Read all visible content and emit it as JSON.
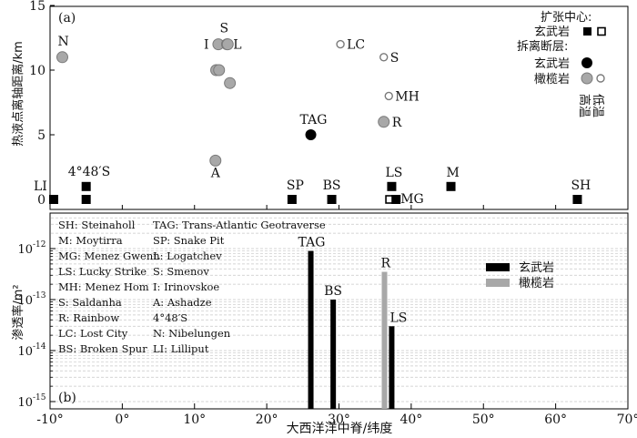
{
  "chart_data": [
    {
      "panel": "(a)",
      "type": "scatter",
      "ylabel": "热液点离轴距离/km",
      "xlim": [
        -10,
        70
      ],
      "ylim": [
        0,
        15
      ],
      "yticks": [
        "0",
        "5",
        "10",
        "15"
      ],
      "legend": {
        "header1": "扩张中心:",
        "basalt1": "玄武岩",
        "header2": "拆离断层:",
        "basalt2": "玄武岩",
        "peridotite": "橄榄岩",
        "high_temp": "高温",
        "low_temp": "低温"
      },
      "points": [
        {
          "label": "LI",
          "x": -9.5,
          "y": 0,
          "marker": "square",
          "temp": "high"
        },
        {
          "label": "4°48′S",
          "x": -5,
          "y": 1,
          "marker": "square",
          "temp": "high"
        },
        {
          "label": "",
          "x": -5,
          "y": 0,
          "marker": "square",
          "temp": "high"
        },
        {
          "label": "SP",
          "x": 23.5,
          "y": 0,
          "marker": "square",
          "temp": "high"
        },
        {
          "label": "BS",
          "x": 29,
          "y": 0,
          "marker": "square",
          "temp": "high"
        },
        {
          "label": "LS",
          "x": 37.3,
          "y": 1,
          "marker": "square",
          "temp": "high"
        },
        {
          "label": "",
          "x": 37,
          "y": 0,
          "marker": "square",
          "temp": "low"
        },
        {
          "label": "MG",
          "x": 37.9,
          "y": 0,
          "marker": "square",
          "temp": "high"
        },
        {
          "label": "M",
          "x": 45.5,
          "y": 1,
          "marker": "square",
          "temp": "high"
        },
        {
          "label": "SH",
          "x": 63,
          "y": 0,
          "marker": "square",
          "temp": "high"
        },
        {
          "label": "TAG",
          "x": 26.1,
          "y": 5,
          "marker": "circle",
          "temp": "high"
        },
        {
          "label": "N",
          "x": -8.3,
          "y": 11,
          "marker": "circle-gray",
          "temp": "high"
        },
        {
          "label": "I",
          "x": 13.3,
          "y": 12,
          "marker": "circle-gray",
          "temp": "high"
        },
        {
          "label": "S",
          "x": 14.5,
          "y": 12,
          "marker": "circle-gray",
          "temp": "high"
        },
        {
          "label": "L",
          "x": 14.6,
          "y": 12,
          "marker": "circle-gray",
          "temp": "high"
        },
        {
          "label": "",
          "x": 13,
          "y": 10,
          "marker": "circle-gray",
          "temp": "high"
        },
        {
          "label": "",
          "x": 13.4,
          "y": 10,
          "marker": "circle-gray",
          "temp": "high"
        },
        {
          "label": "",
          "x": 14.9,
          "y": 9,
          "marker": "circle-gray",
          "temp": "high"
        },
        {
          "label": "A",
          "x": 12.9,
          "y": 3,
          "marker": "circle-gray",
          "temp": "high"
        },
        {
          "label": "R",
          "x": 36.2,
          "y": 6,
          "marker": "circle-gray",
          "temp": "high"
        },
        {
          "label": "LC",
          "x": 30.2,
          "y": 12,
          "marker": "circle-gray",
          "temp": "low"
        },
        {
          "label": "S",
          "x": 36.2,
          "y": 11,
          "marker": "circle-gray",
          "temp": "low"
        },
        {
          "label": "MH",
          "x": 36.9,
          "y": 8,
          "marker": "circle-gray",
          "temp": "low"
        }
      ]
    },
    {
      "panel": "(b)",
      "type": "bar",
      "ylabel": "渗透率/m²",
      "xlabel": "大西洋洋中脊/纬度",
      "yscale": "log",
      "ylim": [
        1e-15,
        5e-12
      ],
      "yticks": [
        "10",
        "10",
        "10",
        "10"
      ],
      "ytick_exponents": [
        "-12",
        "-13",
        "-14",
        "-15"
      ],
      "ytick_values": [
        1e-12,
        1e-13,
        1e-14,
        1e-15
      ],
      "xticks": [
        "-10°",
        "0°",
        "10°",
        "20°",
        "30°",
        "40°",
        "50°",
        "60°",
        "70°"
      ],
      "xtick_values": [
        -10,
        0,
        10,
        20,
        30,
        40,
        50,
        60,
        70
      ],
      "legend": {
        "basalt": "玄武岩",
        "peridotite": "橄榄岩"
      },
      "bars": [
        {
          "label": "TAG",
          "x": 26.1,
          "value": 9e-13,
          "rock": "basalt"
        },
        {
          "label": "BS",
          "x": 29.2,
          "value": 1e-13,
          "rock": "basalt"
        },
        {
          "label": "R",
          "x": 36.3,
          "value": 3.5e-13,
          "rock": "peridotite"
        },
        {
          "label": "LS",
          "x": 37.3,
          "value": 3e-14,
          "rock": "basalt"
        }
      ],
      "abbreviations": [
        [
          "SH: Steinaholl",
          "TAG: Trans-Atlantic Geotraverse"
        ],
        [
          "M: Moytirra",
          "SP: Snake Pit"
        ],
        [
          "MG: Menez Gwenn",
          "L: Logatchev"
        ],
        [
          "LS: Lucky Strike",
          "S: Smenov"
        ],
        [
          "MH: Menez Hom",
          "I: Irinovskoe"
        ],
        [
          "S: Saldanha",
          "A: Ashadze"
        ],
        [
          "R: Rainbow",
          "4°48′S"
        ],
        [
          "LC: Lost City",
          "N: Nibelungen"
        ],
        [
          "BS: Broken Spur",
          "LI: Lilliput"
        ]
      ]
    }
  ],
  "colors": {
    "black": "#000000",
    "gray": "#a8a8a8",
    "gray_edge": "#7a7a7a",
    "grid": "#c8c8c8"
  }
}
